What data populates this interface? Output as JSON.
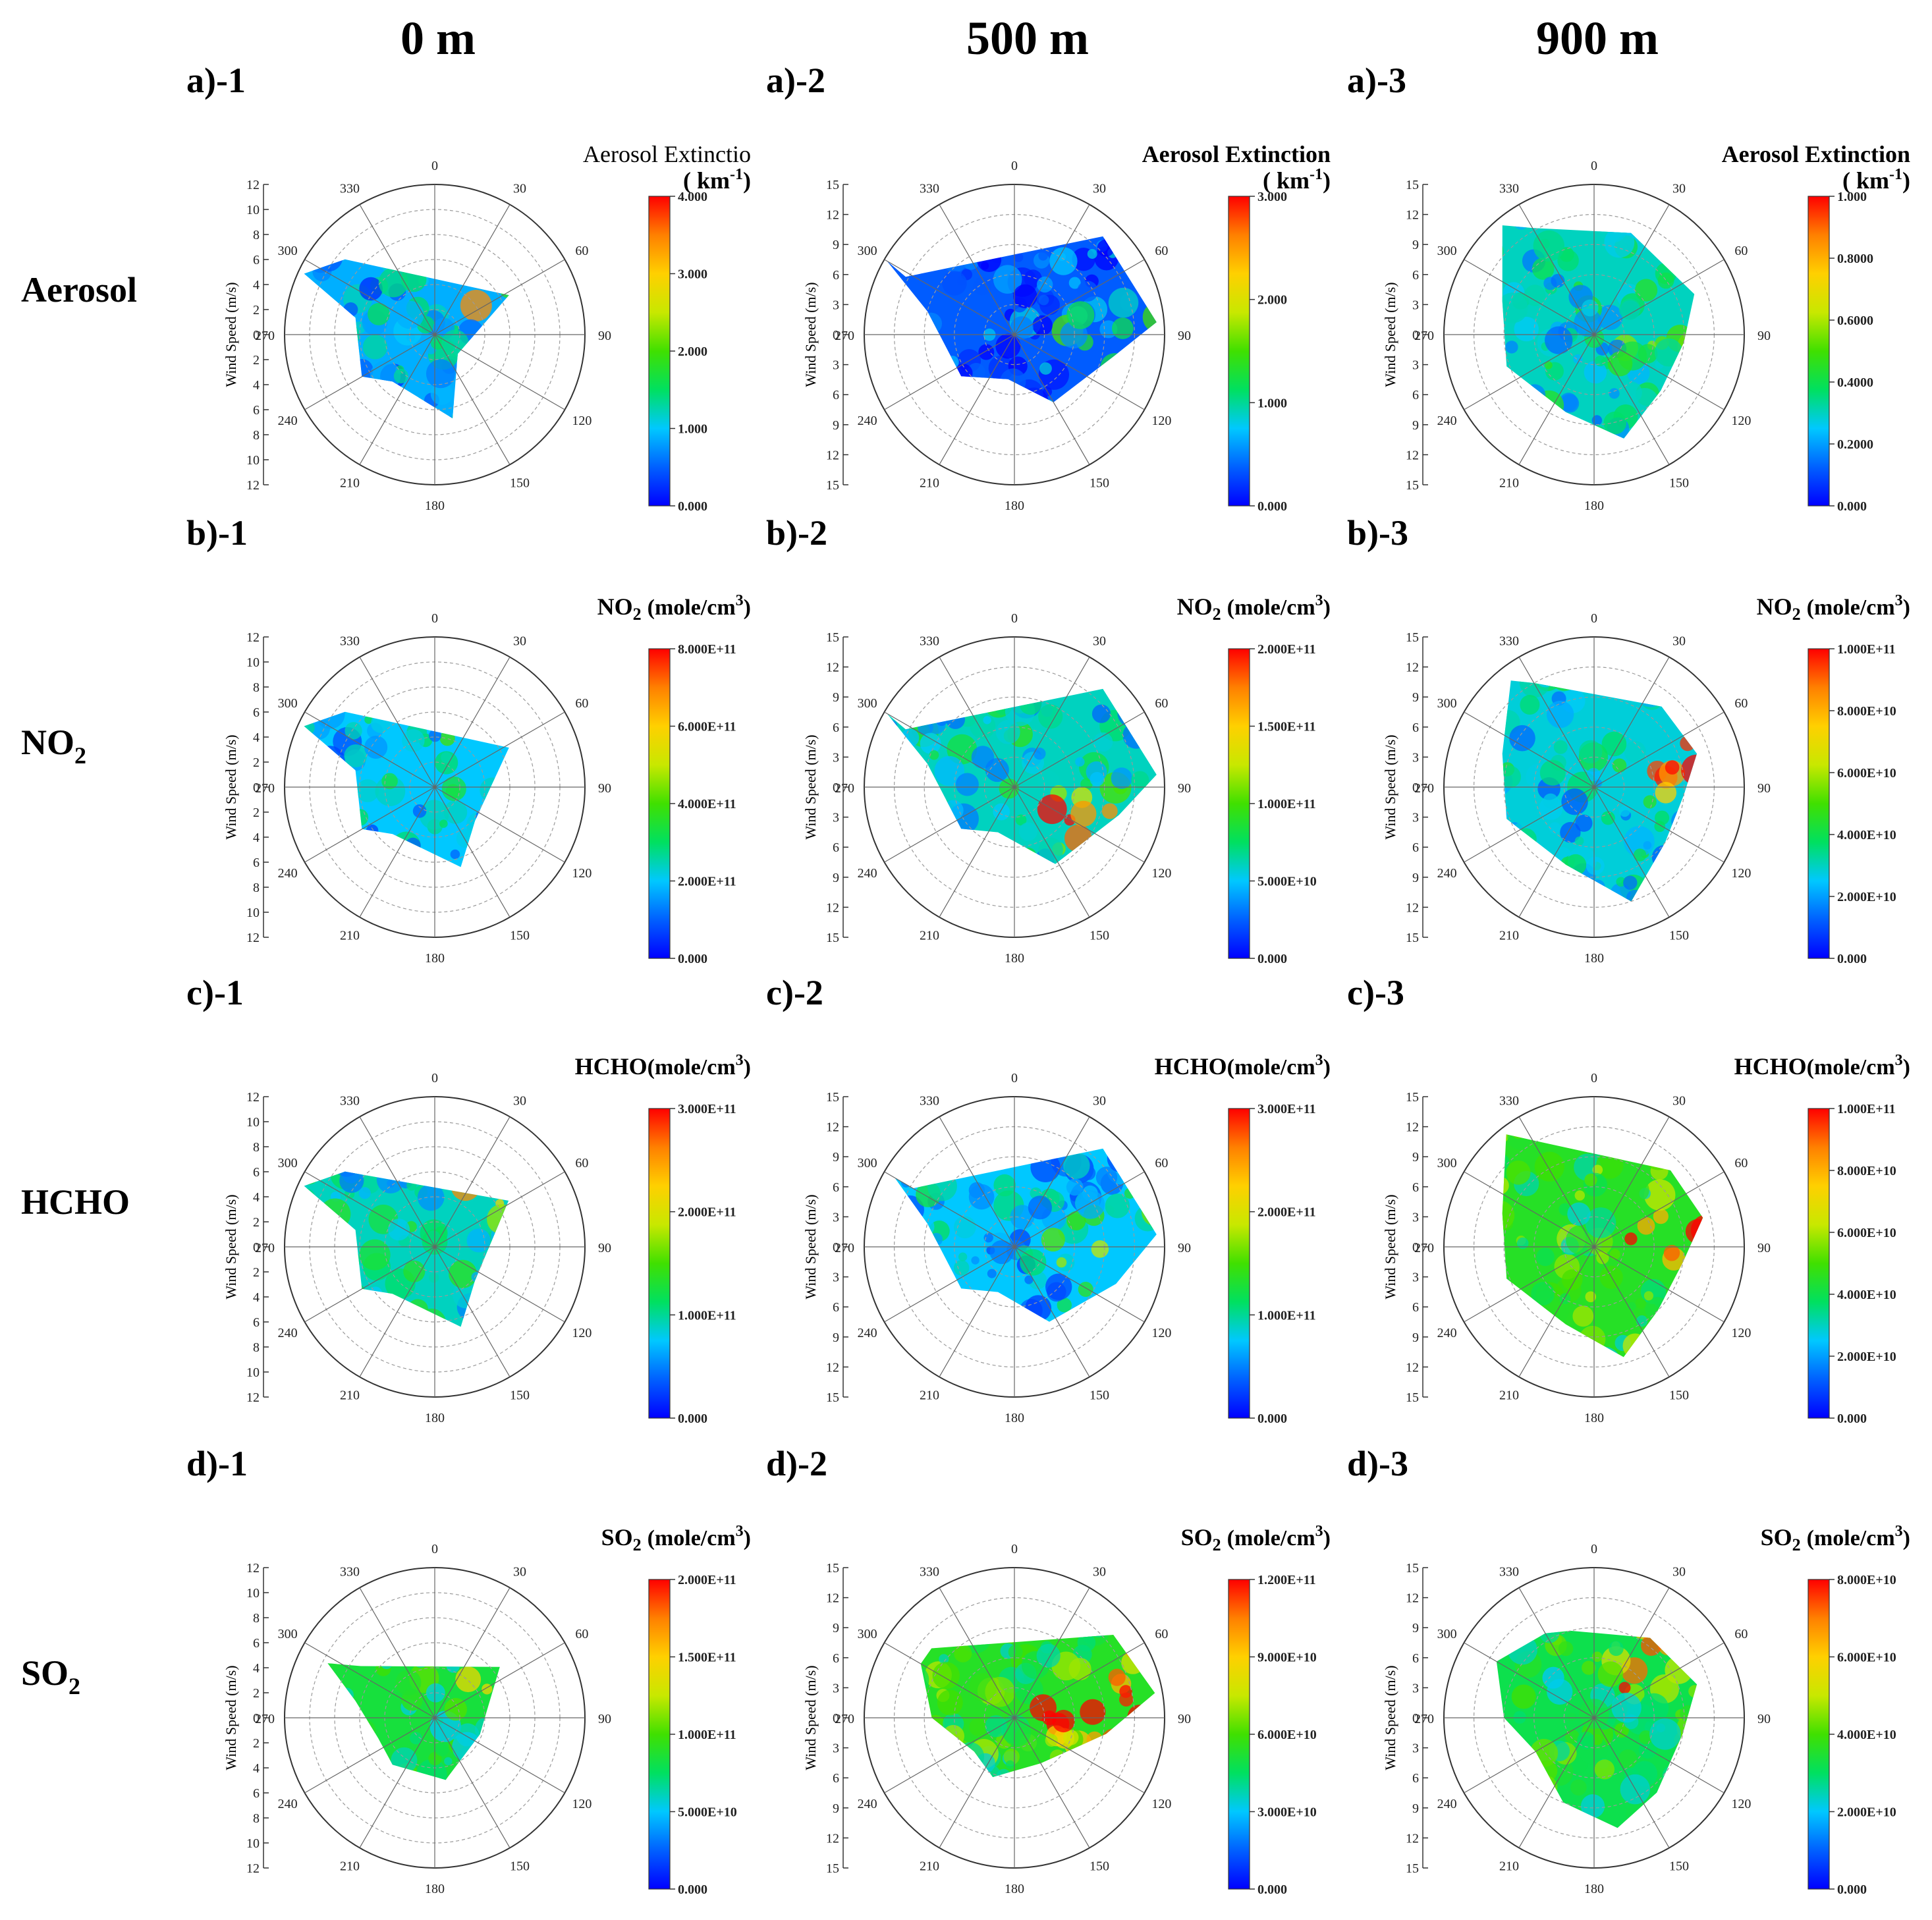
{
  "columns": [
    "0 m",
    "500 m",
    "900 m"
  ],
  "rows": [
    "Aerosol",
    "NO2",
    "HCHO",
    "SO2"
  ],
  "row_label_parts": [
    {
      "base": "Aerosol",
      "sub": ""
    },
    {
      "base": "NO",
      "sub": "2"
    },
    {
      "base": "HCHO",
      "sub": ""
    },
    {
      "base": "SO",
      "sub": "2"
    }
  ],
  "colormap": [
    "#0000ff",
    "#0060ff",
    "#00c8ff",
    "#00e060",
    "#40e000",
    "#c8e800",
    "#ffd000",
    "#ff8000",
    "#ff0000"
  ],
  "chart_data": [
    {
      "type": "heatmap",
      "panel_label": "a)-1",
      "title_base": "Aerosol Extinctio",
      "title_unit": "( km",
      "title_sup": "-1",
      "angle_ticks": [
        "0",
        "30",
        "60",
        "90",
        "120",
        "150",
        "180",
        "210",
        "240",
        "270",
        "300",
        "330"
      ],
      "ylabel": "Wind Speed (m/s)",
      "r_ticks": [
        "12",
        "10",
        "8",
        "6",
        "4",
        "2",
        "0",
        "2",
        "4",
        "6",
        "8",
        "10",
        "12"
      ],
      "r_max": 12,
      "colorbar_ticks": [
        "4.000",
        "3.000",
        "2.000",
        "1.000",
        "0.000"
      ],
      "colorbar_range": [
        0,
        4
      ]
    },
    {
      "type": "heatmap",
      "panel_label": "a)-2",
      "title_base": "Aerosol Extinction",
      "title_unit": "( km",
      "title_sup": "-1",
      "angle_ticks": [
        "0",
        "30",
        "60",
        "90",
        "120",
        "150",
        "180",
        "210",
        "240",
        "270",
        "300",
        "330"
      ],
      "ylabel": "Wind Speed (m/s)",
      "r_ticks": [
        "15",
        "12",
        "9",
        "6",
        "3",
        "0",
        "3",
        "6",
        "9",
        "12",
        "15"
      ],
      "r_max": 15,
      "colorbar_ticks": [
        "3.000",
        "2.000",
        "1.000",
        "0.000"
      ],
      "colorbar_range": [
        0,
        3
      ]
    },
    {
      "type": "heatmap",
      "panel_label": "a)-3",
      "title_base": "Aerosol Extinction",
      "title_unit": "( km",
      "title_sup": "-1",
      "angle_ticks": [
        "0",
        "30",
        "60",
        "90",
        "120",
        "150",
        "180",
        "210",
        "240",
        "270",
        "300",
        "330"
      ],
      "ylabel": "Wind Speed (m/s)",
      "r_ticks": [
        "15",
        "12",
        "9",
        "6",
        "3",
        "0",
        "3",
        "6",
        "9",
        "12",
        "15"
      ],
      "r_max": 15,
      "colorbar_ticks": [
        "1.000",
        "0.8000",
        "0.6000",
        "0.4000",
        "0.2000",
        "0.000"
      ],
      "colorbar_range": [
        0,
        1
      ]
    },
    {
      "type": "heatmap",
      "panel_label": "b)-1",
      "title_base": "NO",
      "title_sub": "2",
      "title_unit": "(mole/cm",
      "title_sup": "3",
      "angle_ticks": [
        "0",
        "30",
        "60",
        "90",
        "120",
        "150",
        "180",
        "210",
        "240",
        "270",
        "300",
        "330"
      ],
      "ylabel": "Wind Speed (m/s)",
      "r_ticks": [
        "12",
        "10",
        "8",
        "6",
        "4",
        "2",
        "0",
        "2",
        "4",
        "6",
        "8",
        "10",
        "12"
      ],
      "r_max": 12,
      "colorbar_ticks": [
        "8.000E+11",
        "6.000E+11",
        "4.000E+11",
        "2.000E+11",
        "0.000"
      ],
      "colorbar_range": [
        0,
        800000000000.0
      ]
    },
    {
      "type": "heatmap",
      "panel_label": "b)-2",
      "title_base": "NO",
      "title_sub": "2",
      "title_unit": "(mole/cm",
      "title_sup": "3",
      "angle_ticks": [
        "0",
        "30",
        "60",
        "90",
        "120",
        "150",
        "180",
        "210",
        "240",
        "270",
        "300",
        "330"
      ],
      "ylabel": "Wind Speed (m/s)",
      "r_ticks": [
        "15",
        "12",
        "9",
        "6",
        "3",
        "0",
        "3",
        "6",
        "9",
        "12",
        "15"
      ],
      "r_max": 15,
      "colorbar_ticks": [
        "2.000E+11",
        "1.500E+11",
        "1.000E+11",
        "5.000E+10",
        "0.000"
      ],
      "colorbar_range": [
        0,
        200000000000.0
      ]
    },
    {
      "type": "heatmap",
      "panel_label": "b)-3",
      "title_base": "NO",
      "title_sub": "2",
      "title_unit": "(mole/cm",
      "title_sup": "3",
      "angle_ticks": [
        "0",
        "30",
        "60",
        "90",
        "120",
        "150",
        "180",
        "210",
        "240",
        "270",
        "300",
        "330"
      ],
      "ylabel": "Wind Speed (m/s)",
      "r_ticks": [
        "15",
        "12",
        "9",
        "6",
        "3",
        "0",
        "3",
        "6",
        "9",
        "12",
        "15"
      ],
      "r_max": 15,
      "colorbar_ticks": [
        "1.000E+11",
        "8.000E+10",
        "6.000E+10",
        "4.000E+10",
        "2.000E+10",
        "0.000"
      ],
      "colorbar_range": [
        0,
        100000000000.0
      ]
    },
    {
      "type": "heatmap",
      "panel_label": "c)-1",
      "title_base": "HCHO",
      "title_unit": "(mole/cm",
      "title_sup": "3",
      "angle_ticks": [
        "0",
        "30",
        "60",
        "90",
        "120",
        "150",
        "180",
        "210",
        "240",
        "270",
        "300",
        "330"
      ],
      "ylabel": "Wind Speed (m/s)",
      "r_ticks": [
        "12",
        "10",
        "8",
        "6",
        "4",
        "2",
        "0",
        "2",
        "4",
        "6",
        "8",
        "10",
        "12"
      ],
      "r_max": 12,
      "colorbar_ticks": [
        "3.000E+11",
        "2.000E+11",
        "1.000E+11",
        "0.000"
      ],
      "colorbar_range": [
        0,
        300000000000.0
      ]
    },
    {
      "type": "heatmap",
      "panel_label": "c)-2",
      "title_base": "HCHO",
      "title_unit": "(mole/cm",
      "title_sup": "3",
      "angle_ticks": [
        "0",
        "30",
        "60",
        "90",
        "120",
        "150",
        "180",
        "210",
        "240",
        "270",
        "300",
        "330"
      ],
      "ylabel": "Wind Speed (m/s)",
      "r_ticks": [
        "15",
        "12",
        "9",
        "6",
        "3",
        "0",
        "3",
        "6",
        "9",
        "12",
        "15"
      ],
      "r_max": 15,
      "colorbar_ticks": [
        "3.000E+11",
        "2.000E+11",
        "1.000E+11",
        "0.000"
      ],
      "colorbar_range": [
        0,
        300000000000.0
      ]
    },
    {
      "type": "heatmap",
      "panel_label": "c)-3",
      "title_base": "HCHO",
      "title_unit": "(mole/cm",
      "title_sup": "3",
      "angle_ticks": [
        "0",
        "30",
        "60",
        "90",
        "120",
        "150",
        "180",
        "210",
        "240",
        "270",
        "300",
        "330"
      ],
      "ylabel": "Wind Speed (m/s)",
      "r_ticks": [
        "15",
        "12",
        "9",
        "6",
        "3",
        "0",
        "3",
        "6",
        "9",
        "12",
        "15"
      ],
      "r_max": 15,
      "colorbar_ticks": [
        "1.000E+11",
        "8.000E+10",
        "6.000E+10",
        "4.000E+10",
        "2.000E+10",
        "0.000"
      ],
      "colorbar_range": [
        0,
        100000000000.0
      ]
    },
    {
      "type": "heatmap",
      "panel_label": "d)-1",
      "title_base": "SO",
      "title_sub": "2",
      "title_unit": "(mole/cm",
      "title_sup": "3",
      "angle_ticks": [
        "0",
        "30",
        "60",
        "90",
        "120",
        "150",
        "180",
        "210",
        "240",
        "270",
        "300",
        "330"
      ],
      "ylabel": "Wind Speed (m/s)",
      "r_ticks": [
        "12",
        "10",
        "8",
        "6",
        "4",
        "2",
        "0",
        "2",
        "4",
        "6",
        "8",
        "10",
        "12"
      ],
      "r_max": 12,
      "colorbar_ticks": [
        "2.000E+11",
        "1.500E+11",
        "1.000E+11",
        "5.000E+10",
        "0.000"
      ],
      "colorbar_range": [
        0,
        200000000000.0
      ]
    },
    {
      "type": "heatmap",
      "panel_label": "d)-2",
      "title_base": "SO",
      "title_sub": "2",
      "title_unit": "(mole/cm",
      "title_sup": "3",
      "angle_ticks": [
        "0",
        "30",
        "60",
        "90",
        "120",
        "150",
        "180",
        "210",
        "240",
        "270",
        "300",
        "330"
      ],
      "ylabel": "Wind Speed (m/s)",
      "r_ticks": [
        "15",
        "12",
        "9",
        "6",
        "3",
        "0",
        "3",
        "6",
        "9",
        "12",
        "15"
      ],
      "r_max": 15,
      "colorbar_ticks": [
        "1.200E+11",
        "9.000E+10",
        "6.000E+10",
        "3.000E+10",
        "0.000"
      ],
      "colorbar_range": [
        0,
        120000000000.0
      ]
    },
    {
      "type": "heatmap",
      "panel_label": "d)-3",
      "title_base": "SO",
      "title_sub": "2",
      "title_unit": "(mole/cm",
      "title_sup": "3",
      "angle_ticks": [
        "0",
        "30",
        "60",
        "90",
        "120",
        "150",
        "180",
        "210",
        "240",
        "270",
        "300",
        "330"
      ],
      "ylabel": "Wind Speed (m/s)",
      "r_ticks": [
        "15",
        "12",
        "9",
        "6",
        "3",
        "0",
        "3",
        "6",
        "9",
        "12",
        "15"
      ],
      "r_max": 15,
      "colorbar_ticks": [
        "8.000E+10",
        "6.000E+10",
        "4.000E+10",
        "2.000E+10",
        "0.000"
      ],
      "colorbar_range": [
        0,
        80000000000.0
      ]
    }
  ]
}
